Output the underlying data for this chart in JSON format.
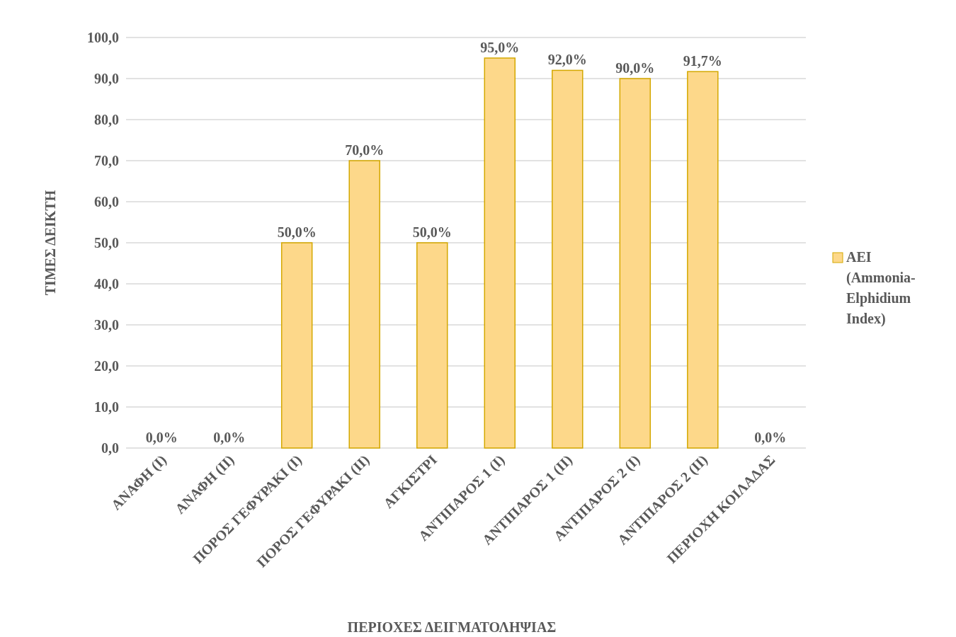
{
  "chart_data": {
    "type": "bar",
    "xlabel": "ΠΕΡΙΟΧΕΣ ΔΕΙΓΜΑΤΟΛΗΨΙΑΣ",
    "ylabel": "ΤΙΜΕΣ ΔΕΙΚΤΗ",
    "categories": [
      "ΑΝΑΦΗ (I)",
      "ΑΝΑΦΗ (II)",
      "ΠΟΡΟΣ ΓΕΦΥΡΑΚΙ (I)",
      "ΠΟΡΟΣ ΓΕΦΥΡΑΚΙ (II)",
      "ΑΓΚΙΣΤΡΙ",
      "ΑΝΤΙΠΑΡΟΣ 1 (I)",
      "ΑΝΤΙΠΑΡΟΣ 1 (II)",
      "ΑΝΤΙΠΑΡΟΣ 2 (I)",
      "ΑΝΤΙΠΑΡΟΣ 2 (II)",
      "ΠΕΡΙΟΧΗ ΚΟΙΛΑΔΑΣ"
    ],
    "series": [
      {
        "name": "AEI (Ammonia-Elphidium Index)",
        "color": "#fdd88a",
        "values": [
          0,
          0,
          50,
          70,
          50,
          95,
          92,
          90,
          91.7,
          0
        ],
        "value_labels": [
          "0,0%",
          "0,0%",
          "50,0%",
          "70,0%",
          "50,0%",
          "95,0%",
          "92,0%",
          "90,0%",
          "91,7%",
          "0,0%"
        ]
      }
    ],
    "ylim": [
      0,
      100
    ],
    "yticks": [
      {
        "value": 0,
        "label": "0,0"
      },
      {
        "value": 10,
        "label": "10,0"
      },
      {
        "value": 20,
        "label": "20,0"
      },
      {
        "value": 30,
        "label": "30,0"
      },
      {
        "value": 40,
        "label": "40,0"
      },
      {
        "value": 50,
        "label": "50,0"
      },
      {
        "value": 60,
        "label": "60,0"
      },
      {
        "value": 70,
        "label": "70,0"
      },
      {
        "value": 80,
        "label": "80,0"
      },
      {
        "value": 90,
        "label": "90,0"
      },
      {
        "value": 100,
        "label": "100,0"
      }
    ],
    "grid": "y",
    "legend": "right"
  }
}
